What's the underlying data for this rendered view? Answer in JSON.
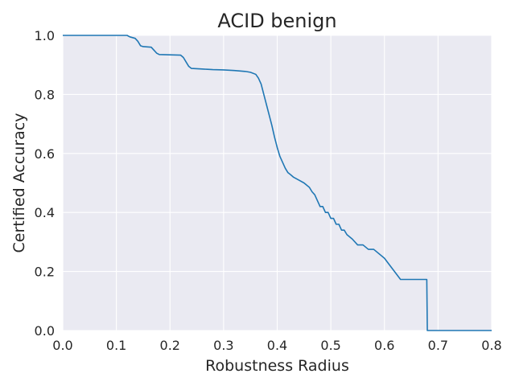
{
  "chart_data": {
    "type": "line",
    "title": "ACID benign",
    "xlabel": "Robustness Radius",
    "ylabel": "Certified Accuracy",
    "xlim": [
      0.0,
      0.8
    ],
    "ylim": [
      0.0,
      1.0
    ],
    "x_ticks": [
      "0.0",
      "0.1",
      "0.2",
      "0.3",
      "0.4",
      "0.5",
      "0.6",
      "0.7",
      "0.8"
    ],
    "y_ticks": [
      "0.0",
      "0.2",
      "0.4",
      "0.6",
      "0.8",
      "1.0"
    ],
    "grid": true,
    "background": "#eaeaf2",
    "series": [
      {
        "color": "#1f77b4",
        "x": [
          0.0,
          0.12,
          0.125,
          0.135,
          0.14,
          0.145,
          0.15,
          0.165,
          0.17,
          0.175,
          0.18,
          0.22,
          0.225,
          0.23,
          0.235,
          0.24,
          0.26,
          0.27,
          0.28,
          0.3,
          0.32,
          0.34,
          0.35,
          0.36,
          0.365,
          0.37,
          0.375,
          0.38,
          0.385,
          0.39,
          0.395,
          0.4,
          0.405,
          0.41,
          0.415,
          0.42,
          0.425,
          0.43,
          0.44,
          0.45,
          0.46,
          0.465,
          0.47,
          0.475,
          0.48,
          0.485,
          0.49,
          0.495,
          0.5,
          0.505,
          0.51,
          0.515,
          0.52,
          0.525,
          0.53,
          0.54,
          0.55,
          0.56,
          0.57,
          0.58,
          0.6,
          0.63,
          0.679,
          0.68,
          0.7,
          0.8
        ],
        "y": [
          1.0,
          1.0,
          0.995,
          0.99,
          0.98,
          0.965,
          0.962,
          0.96,
          0.95,
          0.94,
          0.935,
          0.933,
          0.925,
          0.91,
          0.895,
          0.888,
          0.886,
          0.885,
          0.884,
          0.883,
          0.881,
          0.878,
          0.875,
          0.868,
          0.855,
          0.835,
          0.8,
          0.765,
          0.73,
          0.695,
          0.655,
          0.62,
          0.59,
          0.57,
          0.55,
          0.535,
          0.528,
          0.52,
          0.51,
          0.5,
          0.485,
          0.47,
          0.46,
          0.44,
          0.42,
          0.42,
          0.4,
          0.4,
          0.38,
          0.38,
          0.36,
          0.36,
          0.34,
          0.34,
          0.325,
          0.31,
          0.29,
          0.29,
          0.275,
          0.275,
          0.245,
          0.173,
          0.173,
          0.0,
          0.0,
          0.0
        ]
      }
    ]
  }
}
